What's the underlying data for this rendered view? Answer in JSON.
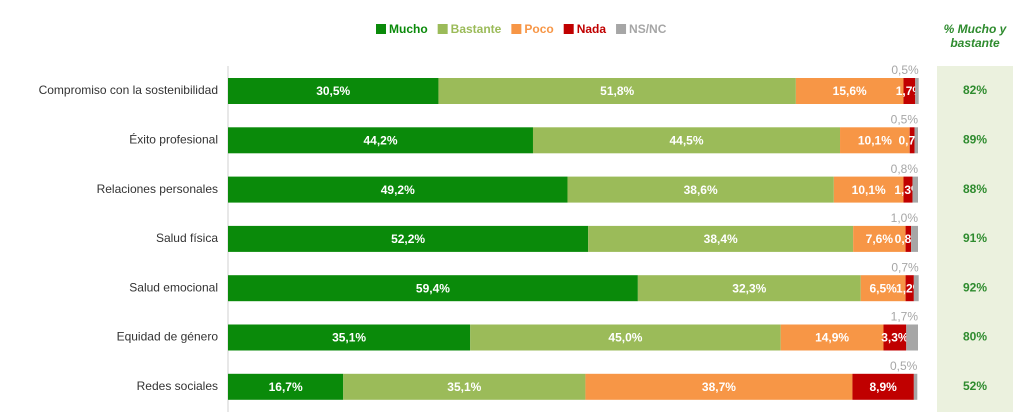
{
  "chart_data": {
    "type": "stacked-bar-horizontal",
    "categories": [
      "Compromiso con la sostenibilidad",
      "Éxito profesional",
      "Relaciones personales",
      "Salud física",
      "Salud emocional",
      "Equidad de género",
      "Redes sociales"
    ],
    "xlim": [
      0,
      100
    ],
    "series": [
      {
        "name": "Mucho",
        "color": "#0a8a0a",
        "values": [
          30.5,
          44.2,
          49.2,
          52.2,
          59.4,
          35.1,
          16.7
        ],
        "value_labels": [
          "30,5%",
          "44,2%",
          "49,2%",
          "52,2%",
          "59,4%",
          "35,1%",
          "16,7%"
        ]
      },
      {
        "name": "Bastante",
        "color": "#9bbb59",
        "values": [
          51.8,
          44.5,
          38.6,
          38.4,
          32.3,
          45.0,
          35.1
        ],
        "value_labels": [
          "51,8%",
          "44,5%",
          "38,6%",
          "38,4%",
          "32,3%",
          "45,0%",
          "35,1%"
        ]
      },
      {
        "name": "Poco",
        "color": "#f79646",
        "values": [
          15.6,
          10.1,
          10.1,
          7.6,
          6.5,
          14.9,
          38.7
        ],
        "value_labels": [
          "15,6%",
          "10,1%",
          "10,1%",
          "7,6%",
          "6,5%",
          "14,9%",
          "38,7%"
        ]
      },
      {
        "name": "Nada",
        "color": "#c00000",
        "values": [
          1.7,
          0.7,
          1.3,
          0.8,
          1.2,
          3.3,
          8.9
        ],
        "value_labels": [
          "1,7%",
          "0,7%",
          "1,3%",
          "0,8%",
          "1,2%",
          "3,3%",
          "8,9%"
        ]
      },
      {
        "name": "NS/NC",
        "color": "#a6a6a6",
        "values": [
          0.5,
          0.5,
          0.8,
          1.0,
          0.7,
          1.7,
          0.5
        ],
        "value_labels": [
          "0,5%",
          "0,5%",
          "0,8%",
          "1,0%",
          "0,7%",
          "1,7%",
          "0,5%"
        ]
      }
    ],
    "summary": {
      "title": "% Mucho y bastante",
      "values": [
        82,
        89,
        88,
        91,
        92,
        80,
        52
      ],
      "value_labels": [
        "82%",
        "89%",
        "88%",
        "91%",
        "92%",
        "80%",
        "52%"
      ]
    }
  }
}
